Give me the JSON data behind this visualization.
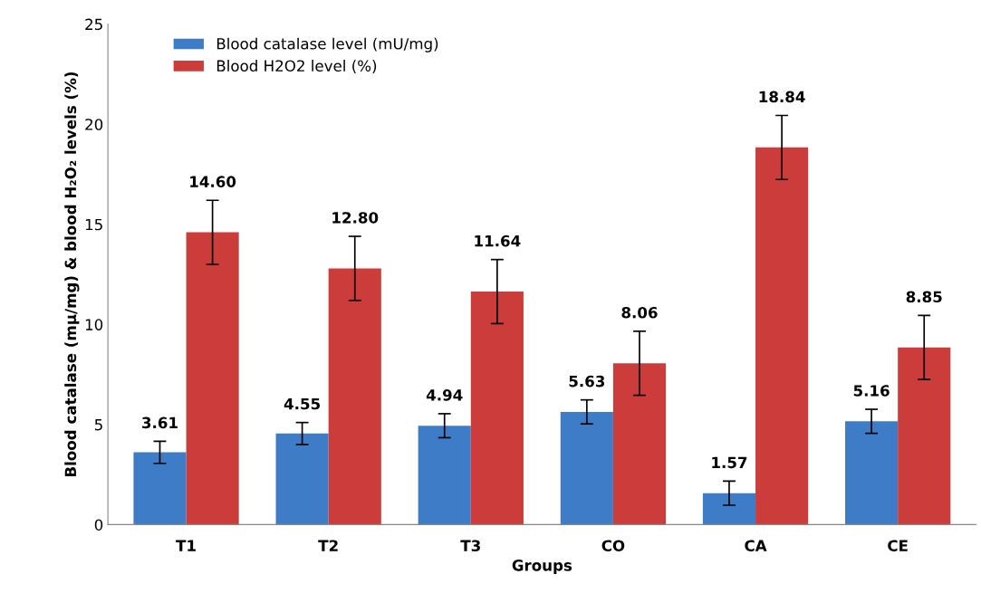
{
  "chart_data": {
    "type": "bar",
    "xlabel": "Groups",
    "ylabel": "Blood catalase (mμ/mg) & blood H₂O₂ levels (%)",
    "categories": [
      "T1",
      "T2",
      "T3",
      "CO",
      "CA",
      "CE"
    ],
    "series": [
      {
        "name": "Blood catalase level (mU/mg)",
        "color": "#3f7cc8",
        "values": [
          3.61,
          4.55,
          4.94,
          5.63,
          1.57,
          5.16
        ],
        "value_labels": [
          "3.61",
          "4.55",
          "4.94",
          "5.63",
          "1.57",
          "5.16"
        ],
        "errors": [
          0.55,
          0.55,
          0.6,
          0.6,
          0.6,
          0.6
        ]
      },
      {
        "name": "Blood H2O2 level (%)",
        "color": "#cc3c3a",
        "values": [
          14.6,
          12.8,
          11.64,
          8.06,
          18.84,
          8.85
        ],
        "value_labels": [
          "14.60",
          "12.80",
          "11.64",
          "8.06",
          "18.84",
          "8.85"
        ],
        "errors": [
          1.6,
          1.6,
          1.6,
          1.6,
          1.6,
          1.6
        ]
      }
    ],
    "ylim": [
      0,
      25
    ],
    "yticks": [
      0,
      5,
      10,
      15,
      20,
      25
    ],
    "grid": false,
    "legend": "top left"
  }
}
